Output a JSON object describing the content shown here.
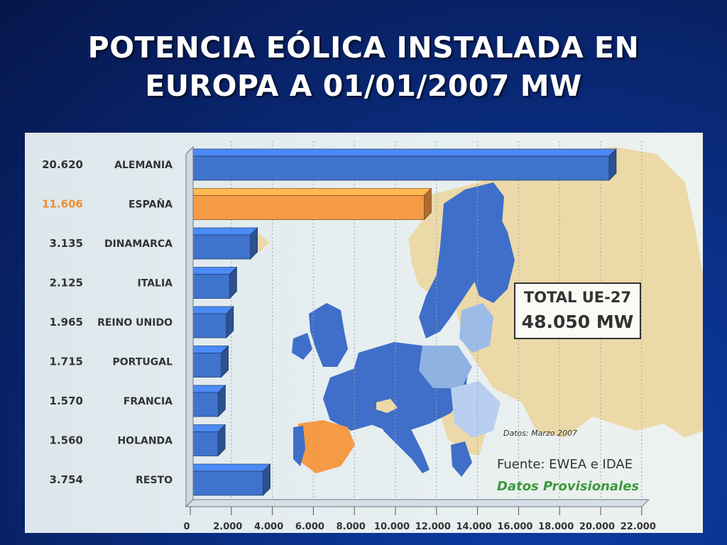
{
  "slide": {
    "title_line1": "POTENCIA EÓLICA INSTALADA EN",
    "title_line2": "EUROPA A 01/01/2007 MW"
  },
  "panel": {
    "total_label": "TOTAL UE-27",
    "total_value": "48.050 MW",
    "date_note": "Datos: Marzo 2007",
    "source_note": "Fuente: EWEA e IDAE",
    "provisional_note": "Datos Provisionales"
  },
  "colors": {
    "bar": "#3f73cc",
    "bar_highlight": "#f59a45",
    "value_label": "#333333",
    "value_label_highlight": "#f08a2c"
  },
  "chart_data": {
    "type": "bar",
    "orientation": "horizontal",
    "categories": [
      "ALEMANIA",
      "ESPAÑA",
      "DINAMARCA",
      "ITALIA",
      "REINO UNIDO",
      "PORTUGAL",
      "FRANCIA",
      "HOLANDA",
      "RESTO"
    ],
    "value_labels": [
      "20.620",
      "11.606",
      "3.135",
      "2.125",
      "1.965",
      "1.715",
      "1.570",
      "1.560",
      "3.754"
    ],
    "values": [
      20620,
      11606,
      3135,
      2125,
      1965,
      1715,
      1570,
      1560,
      3754
    ],
    "highlight_index": 1,
    "x_ticks": [
      0,
      2000,
      4000,
      6000,
      8000,
      10000,
      12000,
      14000,
      16000,
      18000,
      20000,
      22000
    ],
    "x_tick_labels": [
      "0",
      "2.000",
      "4.000",
      "6.000",
      "8.000",
      "10.000",
      "12.000",
      "14.000",
      "16.000",
      "18.000",
      "20.000",
      "22.000"
    ],
    "xlim": [
      0,
      22000
    ],
    "grid": true,
    "bar_style": "3d"
  }
}
